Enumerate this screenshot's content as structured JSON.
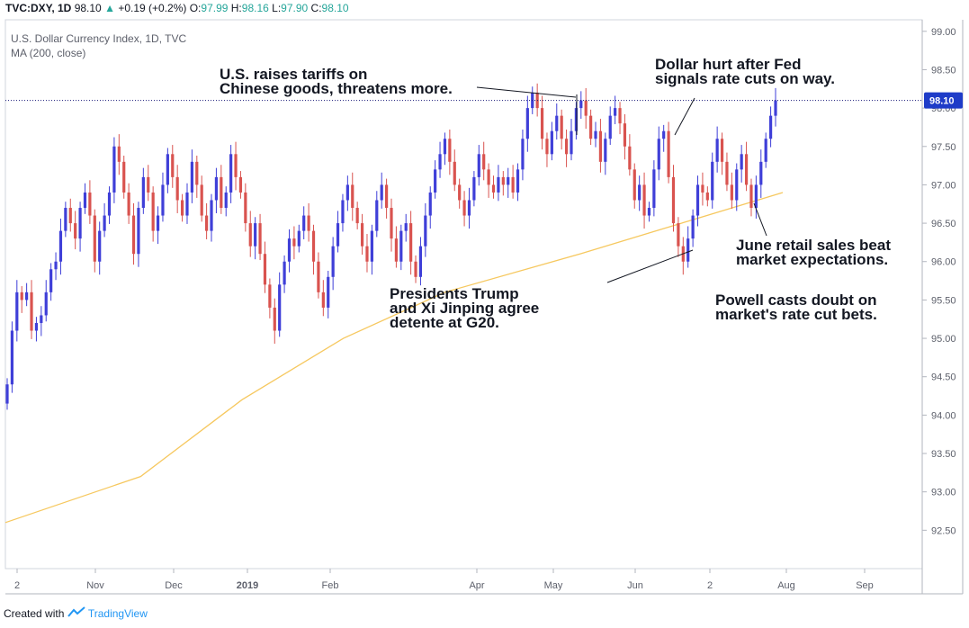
{
  "header": {
    "symbol": "TVC:DXY, 1D",
    "last": "98.10",
    "up_arrow": "▲",
    "change": "+0.19 (+0.2%)",
    "o_label": "O:",
    "o_value": "97.99",
    "h_label": "H:",
    "h_value": "98.16",
    "l_label": "L:",
    "l_value": "97.90",
    "c_label": "C:",
    "c_value": "98.10"
  },
  "subheader": {
    "title": "U.S. Dollar Currency Index, 1D, TVC",
    "indicator": "MA (200, close)"
  },
  "footer": {
    "created_with": "Created with",
    "brand": "TradingView"
  },
  "colors": {
    "up": "#3f3fd8",
    "down": "#d9534f",
    "ma": "#f6c85f",
    "price_line": "#1a1a7a",
    "price_tag": "#1e3cc8"
  },
  "chart_data": {
    "type": "candlestick",
    "title": "U.S. Dollar Currency Index, 1D, TVC",
    "ylim": [
      92.0,
      99.15
    ],
    "y_ticks": [
      "99.00",
      "98.50",
      "98.00",
      "97.50",
      "97.00",
      "96.50",
      "96.00",
      "95.50",
      "95.00",
      "94.50",
      "94.00",
      "93.50",
      "93.00",
      "92.50"
    ],
    "x_ticks": [
      "2",
      "Nov",
      "Dec",
      "2019",
      "Feb",
      "Apr",
      "May",
      "Jun",
      "2",
      "Aug",
      "Sep"
    ],
    "last_price_tag": "98.10",
    "series_close": [
      94.4,
      95.1,
      95.6,
      95.5,
      95.6,
      95.1,
      95.2,
      95.3,
      95.6,
      95.9,
      96.0,
      96.4,
      96.7,
      96.5,
      96.3,
      96.7,
      96.9,
      96.6,
      96.0,
      96.4,
      96.6,
      96.9,
      97.5,
      97.3,
      96.9,
      96.6,
      96.1,
      96.7,
      97.1,
      96.9,
      96.4,
      96.6,
      97.0,
      97.4,
      97.1,
      96.8,
      96.6,
      96.9,
      97.3,
      97.0,
      96.6,
      96.4,
      96.8,
      97.1,
      96.7,
      96.9,
      97.4,
      97.1,
      96.9,
      96.5,
      96.2,
      96.5,
      96.1,
      95.7,
      95.4,
      95.1,
      95.7,
      96.0,
      96.3,
      96.2,
      96.4,
      96.6,
      96.4,
      96.0,
      95.6,
      95.4,
      95.8,
      96.2,
      96.5,
      96.8,
      97.0,
      96.7,
      96.5,
      96.2,
      96.0,
      96.4,
      96.8,
      97.0,
      96.7,
      96.3,
      96.0,
      96.4,
      96.5,
      96.0,
      95.8,
      96.2,
      96.6,
      96.9,
      97.2,
      97.4,
      97.6,
      97.3,
      97.0,
      96.8,
      96.6,
      96.8,
      97.1,
      97.4,
      97.2,
      97.0,
      96.9,
      97.1,
      97.0,
      97.1,
      96.9,
      97.2,
      97.6,
      98.0,
      98.2,
      98.0,
      97.6,
      97.4,
      97.7,
      97.9,
      97.6,
      97.4,
      97.7,
      98.0,
      98.1,
      97.9,
      97.6,
      97.7,
      97.3,
      97.6,
      97.9,
      98.0,
      97.8,
      97.5,
      97.2,
      96.8,
      97.0,
      96.6,
      96.7,
      97.2,
      97.6,
      97.7,
      97.1,
      96.5,
      96.2,
      96.0,
      96.3,
      96.6,
      97.0,
      96.9,
      96.8,
      97.3,
      97.6,
      97.3,
      97.0,
      96.8,
      97.2,
      97.4,
      97.0,
      96.7,
      97.0,
      97.3,
      97.6,
      97.9,
      98.1
    ],
    "ma": {
      "name": "MA (200, close)",
      "x_days": [
        0,
        40,
        70,
        100,
        130,
        170,
        200,
        230
      ],
      "y": [
        92.6,
        93.2,
        94.2,
        95.0,
        95.6,
        96.1,
        96.5,
        96.9
      ]
    },
    "annotations": [
      {
        "text": [
          "U.S. raises tariffs on",
          "Chinese goods, threatens more."
        ]
      },
      {
        "text": [
          "Dollar hurt after Fed",
          "signals rate cuts on way."
        ]
      },
      {
        "text": [
          "Presidents Trump",
          "and Xi Jinping agree",
          "detente at G20."
        ]
      },
      {
        "text": [
          "June retail sales beat",
          "market expectations."
        ]
      },
      {
        "text": [
          "Powell casts doubt on",
          "market's rate cut bets."
        ]
      }
    ]
  }
}
